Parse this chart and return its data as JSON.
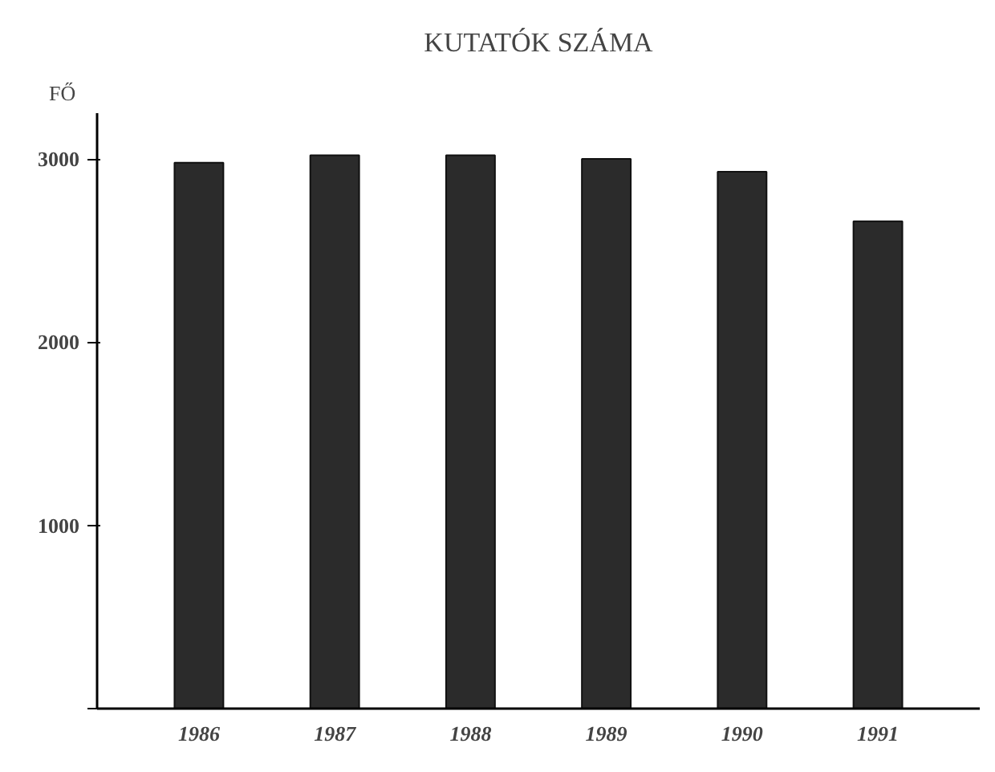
{
  "chart_data": {
    "type": "bar",
    "title": "KUTATÓK SZÁMA",
    "ylabel": "FŐ",
    "categories": [
      "1986",
      "1987",
      "1988",
      "1989",
      "1990",
      "1991"
    ],
    "values": [
      2980,
      3020,
      3020,
      3000,
      2930,
      2660
    ],
    "color": "#2b2b2b",
    "ylim": [
      0,
      3250
    ],
    "yticks": [
      {
        "value": 0,
        "label": null
      },
      1000,
      2000,
      3000
    ],
    "grid": false
  }
}
